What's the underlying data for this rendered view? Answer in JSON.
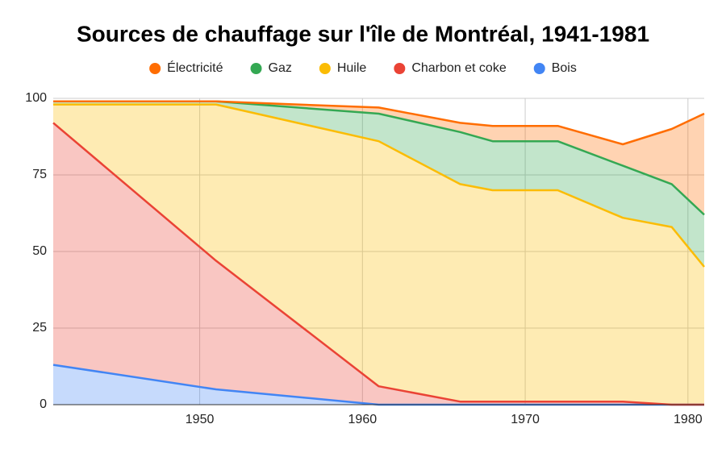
{
  "chart_data": {
    "type": "stacked_area",
    "title": "Sources de chauffage sur l'île de Montréal, 1941-1981",
    "x": [
      1941,
      1951,
      1961,
      1966,
      1968,
      1972,
      1976,
      1979,
      1981
    ],
    "series": [
      {
        "name": "Électricité",
        "color": "#ff6d01",
        "values": [
          0,
          0,
          2,
          3,
          5,
          5,
          7,
          18,
          33
        ]
      },
      {
        "name": "Gaz",
        "color": "#34a853",
        "values": [
          1,
          1,
          9,
          17,
          16,
          16,
          17,
          14,
          17
        ]
      },
      {
        "name": "Huile",
        "color": "#fbbc04",
        "values": [
          6,
          51,
          80,
          71,
          69,
          69,
          60,
          58,
          45
        ]
      },
      {
        "name": "Charbon et coke",
        "color": "#ea4335",
        "values": [
          79,
          42,
          6,
          1,
          1,
          1,
          1,
          0,
          0
        ]
      },
      {
        "name": "Bois",
        "color": "#4285f4",
        "values": [
          13,
          5,
          0,
          0,
          0,
          0,
          0,
          0,
          0
        ]
      }
    ],
    "xlim": [
      1941,
      1981
    ],
    "xticks": [
      1950,
      1960,
      1970,
      1980
    ],
    "ylim": [
      0,
      100
    ],
    "yticks": [
      0,
      25,
      50,
      75,
      100
    ],
    "grid": true,
    "legend": "top"
  }
}
